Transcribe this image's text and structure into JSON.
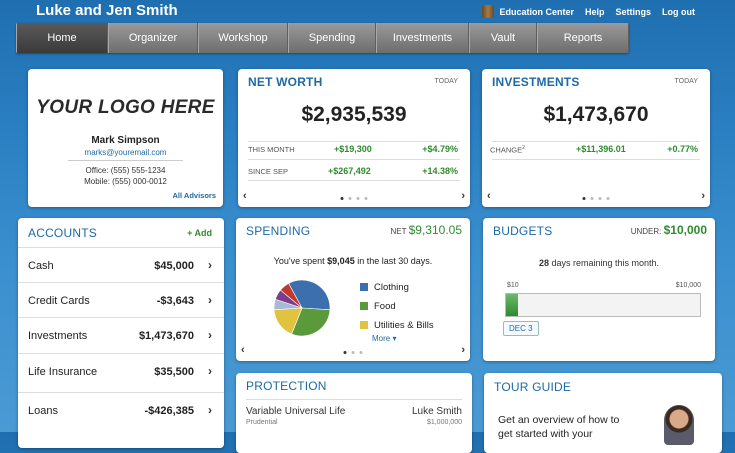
{
  "header": {
    "title": "Luke and Jen Smith",
    "links": [
      "Education Center",
      "Help",
      "Settings",
      "Log out"
    ]
  },
  "nav": {
    "tabs": [
      "Home",
      "Organizer",
      "Workshop",
      "Spending",
      "Investments",
      "Vault",
      "Reports"
    ]
  },
  "advisor": {
    "logo": "YOUR LOGO HERE",
    "name": "Mark Simpson",
    "email": "marks@youremail.com",
    "office": "Office: (555) 555-1234",
    "mobile": "Mobile: (555) 000-0012",
    "all_link": "All Advisors"
  },
  "networth": {
    "title": "NET WORTH",
    "today": "TODAY",
    "value": "$2,935,539",
    "rows": [
      {
        "label": "THIS MONTH",
        "amount": "+$19,300",
        "pct": "+$4.79%"
      },
      {
        "label": "SINCE SEP",
        "amount": "+$267,492",
        "pct": "+14.38%"
      }
    ]
  },
  "investments": {
    "title": "INVESTMENTS",
    "today": "TODAY",
    "value": "$1,473,670",
    "change_label": "CHANGE",
    "change_sup": "2",
    "change_amount": "+$11,396.01",
    "change_pct": "+0.77%"
  },
  "accounts": {
    "title": "ACCOUNTS",
    "add": "+ Add",
    "rows": [
      {
        "label": "Cash",
        "value": "$45,000"
      },
      {
        "label": "Credit Cards",
        "value": "-$3,643"
      },
      {
        "label": "Investments",
        "value": "$1,473,670"
      },
      {
        "label": "Life Insurance",
        "value": "$35,500"
      },
      {
        "label": "Loans",
        "value": "-$426,385"
      }
    ]
  },
  "spending": {
    "title": "SPENDING",
    "net_label": "NET",
    "net_value": "$9,310.05",
    "summary_pre": "You've spent ",
    "summary_amt": "$9,045",
    "summary_post": " in the last 30 days.",
    "legend": [
      {
        "label": "Clothing",
        "color": "#3b6fae"
      },
      {
        "label": "Food",
        "color": "#5a9a3a"
      },
      {
        "label": "Utilities & Bills",
        "color": "#e0c440"
      }
    ],
    "more": "More",
    "pie": [
      {
        "color": "#3b6fae",
        "value": 34
      },
      {
        "color": "#5a9a3a",
        "value": 30
      },
      {
        "color": "#e0c440",
        "value": 18
      },
      {
        "color": "#a8b8d8",
        "value": 6
      },
      {
        "color": "#7b3f8a",
        "value": 6
      },
      {
        "color": "#c0392b",
        "value": 6
      }
    ]
  },
  "budgets": {
    "title": "BUDGETS",
    "under_label": "UNDER:",
    "under_value": "$10,000",
    "days": "28",
    "days_text": " days remaining this month.",
    "min_label": "$10",
    "max_label": "$10,000",
    "date": "DEC 3",
    "progress": 0.03
  },
  "protection": {
    "title": "PROTECTION",
    "name": "Variable Universal Life",
    "owner": "Luke Smith",
    "sub": "Prudential",
    "amount": "$1,000,000"
  },
  "tour": {
    "title": "TOUR GUIDE",
    "text1": "Get an overview of how to",
    "text2": "get started with your"
  }
}
